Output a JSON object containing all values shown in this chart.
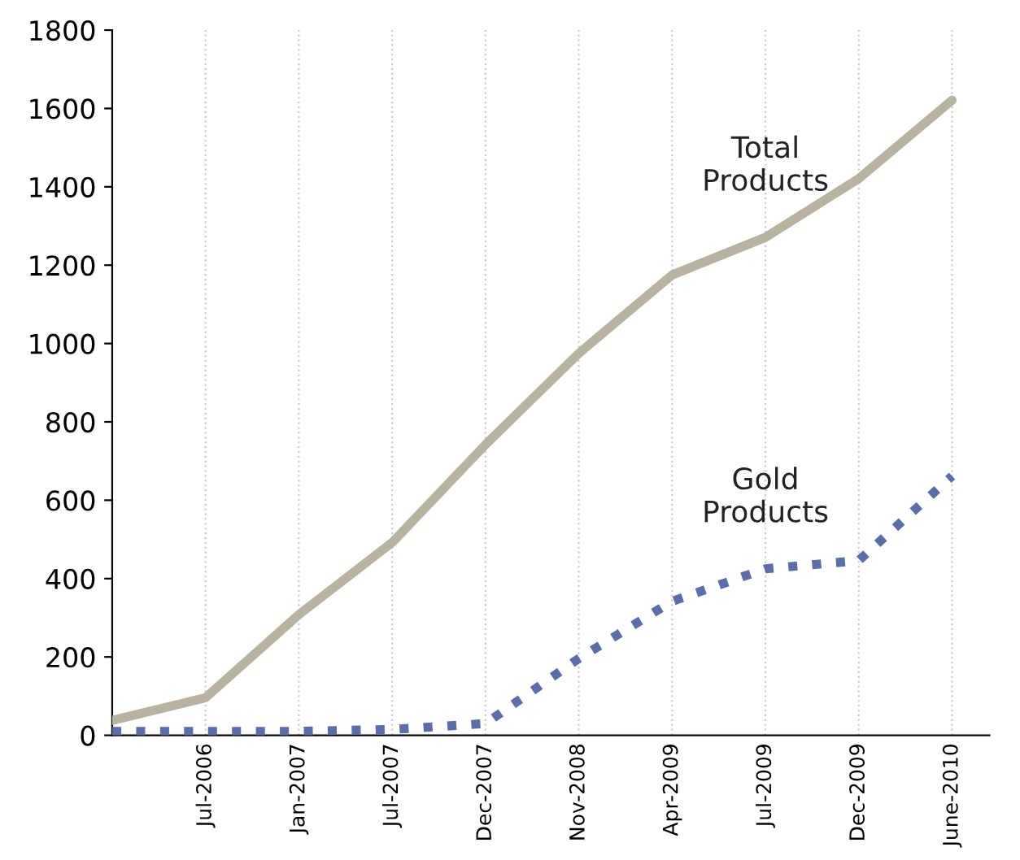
{
  "chart_data": {
    "type": "line",
    "categories": [
      null,
      "Jul-2006",
      "Jan-2007",
      "Jul-2007",
      "Dec-2007",
      "Nov-2008",
      "Apr-2009",
      "Jul-2009",
      "Dec-2009",
      "June-2010"
    ],
    "series": [
      {
        "name": "Total\nProducts",
        "color": "#b8b3a0",
        "line_style": "solid",
        "values": [
          38,
          96,
          308,
          492,
          742,
          975,
          1175,
          1271,
          1421,
          1621
        ]
      },
      {
        "name": "Gold\nProducts",
        "color": "#5b6ea8",
        "line_style": "dotted",
        "values": [
          10,
          10,
          10,
          15,
          30,
          196,
          342,
          425,
          446,
          662
        ]
      }
    ],
    "ylim": [
      0,
      1800
    ],
    "yticks": [
      0,
      200,
      400,
      600,
      800,
      1000,
      1200,
      1400,
      1600,
      1800
    ],
    "grid": "x",
    "marker": "none",
    "legend": false
  }
}
